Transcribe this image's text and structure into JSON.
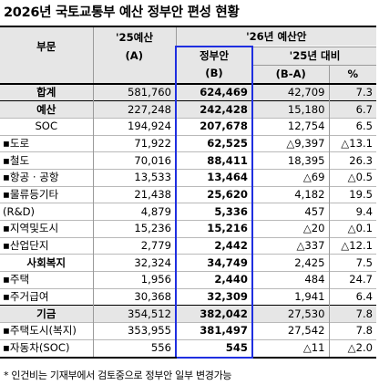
{
  "title": "2026년 국토교통부 예산 정부안 편성 현황",
  "header": {
    "category": "부문",
    "col_25_top": "'25예산",
    "col_25_bottom": "(A)",
    "col_26_group": "'26년 예산안",
    "col_gov_top": "정부안",
    "col_gov_bottom": "(B)",
    "col_cmp_group": "'25년 대비",
    "col_diff": "(B-A)",
    "col_pct": "%"
  },
  "rows": [
    {
      "label": "합계",
      "a": "581,760",
      "b": "624,469",
      "diff": "42,709",
      "pct": "7.3",
      "style": "group"
    },
    {
      "label": "예산",
      "a": "227,248",
      "b": "242,428",
      "diff": "15,180",
      "pct": "6.7",
      "style": "group"
    },
    {
      "label": "SOC",
      "a": "194,924",
      "b": "207,678",
      "diff": "12,754",
      "pct": "6.5",
      "style": "center"
    },
    {
      "label": "▪도로",
      "a": "71,922",
      "b": "62,525",
      "diff": "△9,397",
      "pct": "△13.1",
      "style": "item"
    },
    {
      "label": "▪철도",
      "a": "70,016",
      "b": "88,411",
      "diff": "18,395",
      "pct": "26.3",
      "style": "item"
    },
    {
      "label": "▪항공 · 공항",
      "a": "13,533",
      "b": "13,464",
      "diff": "△69",
      "pct": "△0.5",
      "style": "item"
    },
    {
      "label": "▪물류등기타",
      "a": "21,438",
      "b": "25,620",
      "diff": "4,182",
      "pct": "19.5",
      "style": "item"
    },
    {
      "label": "(R&D)",
      "a": "4,879",
      "b": "5,336",
      "diff": "457",
      "pct": "9.4",
      "style": "item"
    },
    {
      "label": "▪지역및도시",
      "a": "15,236",
      "b": "15,216",
      "diff": "△20",
      "pct": "△0.1",
      "style": "item"
    },
    {
      "label": "▪산업단지",
      "a": "2,779",
      "b": "2,442",
      "diff": "△337",
      "pct": "△12.1",
      "style": "item"
    },
    {
      "label": "사회복지",
      "a": "32,324",
      "b": "34,749",
      "diff": "2,425",
      "pct": "7.5",
      "style": "subgroup"
    },
    {
      "label": "▪주택",
      "a": "1,956",
      "b": "2,440",
      "diff": "484",
      "pct": "24.7",
      "style": "item"
    },
    {
      "label": "▪주거급여",
      "a": "30,368",
      "b": "32,309",
      "diff": "1,941",
      "pct": "6.4",
      "style": "item"
    },
    {
      "label": "기금",
      "a": "354,512",
      "b": "382,042",
      "diff": "27,530",
      "pct": "7.8",
      "style": "group"
    },
    {
      "label": "▪주택도시(복지)",
      "a": "353,955",
      "b": "381,497",
      "diff": "27,542",
      "pct": "7.8",
      "style": "item"
    },
    {
      "label": "▪자동차(SOC)",
      "a": "556",
      "b": "545",
      "diff": "△11",
      "pct": "△2.0",
      "style": "item"
    }
  ],
  "footnote": "* 인건비는 기재부에서 검토중으로 정부안 일부 변경가능",
  "colors": {
    "header_bg": "#e6e6e6",
    "highlight_border": "#1f2fe0"
  }
}
